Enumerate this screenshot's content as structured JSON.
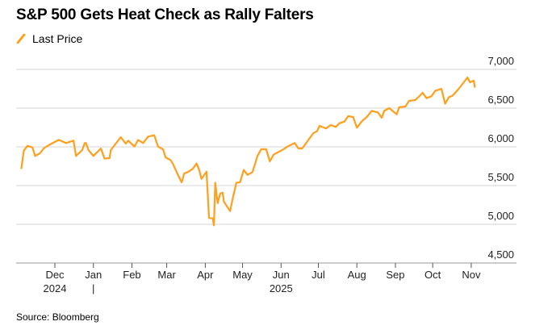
{
  "chart_data": {
    "type": "line",
    "title": "S&P 500 Gets Heat Check as Rally Falters",
    "legend": [
      {
        "name": "Last Price",
        "color": "#ff9f1c"
      }
    ],
    "legend_placement": "top-left",
    "source": "Source: Bloomberg",
    "x_unit": "days since 2024-11-01",
    "x_ticks": [
      {
        "label": "Dec",
        "day": 30
      },
      {
        "label": "Jan",
        "day": 61
      },
      {
        "label": "Feb",
        "day": 92
      },
      {
        "label": "Mar",
        "day": 120
      },
      {
        "label": "Apr",
        "day": 151
      },
      {
        "label": "May",
        "day": 181
      },
      {
        "label": "Jun",
        "day": 212
      },
      {
        "label": "Jul",
        "day": 242
      },
      {
        "label": "Aug",
        "day": 273
      },
      {
        "label": "Sep",
        "day": 304
      },
      {
        "label": "Oct",
        "day": 334
      },
      {
        "label": "Nov",
        "day": 365
      }
    ],
    "year_labels": [
      {
        "label": "2024",
        "day": 30
      },
      {
        "label": "|",
        "day": 61
      },
      {
        "label": "2025",
        "day": 212
      }
    ],
    "y_ticks": [
      4500,
      5000,
      5500,
      6000,
      6500,
      7000
    ],
    "y_tick_labels": [
      "4,500",
      "5,000",
      "5,500",
      "6,000",
      "6,500",
      "7,000"
    ],
    "ylim": [
      4500,
      7000
    ],
    "grid": true,
    "series": [
      {
        "name": "Last Price",
        "points": [
          [
            3,
            5715
          ],
          [
            5,
            5951
          ],
          [
            8,
            6013
          ],
          [
            12,
            5992
          ],
          [
            14,
            5882
          ],
          [
            18,
            5917
          ],
          [
            21,
            5979
          ],
          [
            25,
            6021
          ],
          [
            33,
            6090
          ],
          [
            39,
            6049
          ],
          [
            45,
            6080
          ],
          [
            47,
            5882
          ],
          [
            52,
            5958
          ],
          [
            54,
            6049
          ],
          [
            55,
            6049
          ],
          [
            57,
            5958
          ],
          [
            61,
            5882
          ],
          [
            67,
            5979
          ],
          [
            70,
            5847
          ],
          [
            74,
            5854
          ],
          [
            75,
            5958
          ],
          [
            78,
            6021
          ],
          [
            83,
            6125
          ],
          [
            87,
            6041
          ],
          [
            89,
            6080
          ],
          [
            94,
            6003
          ],
          [
            97,
            6090
          ],
          [
            101,
            6049
          ],
          [
            105,
            6132
          ],
          [
            110,
            6149
          ],
          [
            113,
            6003
          ],
          [
            117,
            5969
          ],
          [
            119,
            5865
          ],
          [
            123,
            5830
          ],
          [
            125,
            5779
          ],
          [
            129,
            5638
          ],
          [
            132,
            5541
          ],
          [
            134,
            5656
          ],
          [
            137,
            5674
          ],
          [
            141,
            5717
          ],
          [
            144,
            5784
          ],
          [
            146,
            5708
          ],
          [
            148,
            5586
          ],
          [
            151,
            5656
          ],
          [
            152,
            5680
          ],
          [
            154,
            5083
          ],
          [
            157,
            5076
          ],
          [
            158,
            4986
          ],
          [
            159,
            5536
          ],
          [
            161,
            5273
          ],
          [
            163,
            5396
          ],
          [
            165,
            5408
          ],
          [
            166,
            5292
          ],
          [
            171,
            5170
          ],
          [
            173,
            5326
          ],
          [
            176,
            5534
          ],
          [
            179,
            5545
          ],
          [
            182,
            5702
          ],
          [
            185,
            5638
          ],
          [
            189,
            5674
          ],
          [
            193,
            5882
          ],
          [
            196,
            5969
          ],
          [
            200,
            5969
          ],
          [
            203,
            5812
          ],
          [
            206,
            5899
          ],
          [
            210,
            5934
          ],
          [
            214,
            5969
          ],
          [
            217,
            6003
          ],
          [
            223,
            6049
          ],
          [
            226,
            5979
          ],
          [
            229,
            5979
          ],
          [
            234,
            6090
          ],
          [
            238,
            6177
          ],
          [
            241,
            6201
          ],
          [
            243,
            6271
          ],
          [
            248,
            6236
          ],
          [
            252,
            6281
          ],
          [
            256,
            6257
          ],
          [
            259,
            6305
          ],
          [
            263,
            6326
          ],
          [
            266,
            6396
          ],
          [
            270,
            6385
          ],
          [
            273,
            6247
          ],
          [
            277,
            6330
          ],
          [
            281,
            6385
          ],
          [
            285,
            6465
          ],
          [
            290,
            6444
          ],
          [
            293,
            6375
          ],
          [
            295,
            6465
          ],
          [
            299,
            6500
          ],
          [
            305,
            6420
          ],
          [
            307,
            6510
          ],
          [
            312,
            6521
          ],
          [
            315,
            6594
          ],
          [
            320,
            6604
          ],
          [
            326,
            6698
          ],
          [
            329,
            6628
          ],
          [
            333,
            6653
          ],
          [
            336,
            6722
          ],
          [
            341,
            6750
          ],
          [
            344,
            6556
          ],
          [
            347,
            6642
          ],
          [
            350,
            6660
          ],
          [
            355,
            6750
          ],
          [
            362,
            6896
          ],
          [
            364,
            6833
          ],
          [
            367,
            6854
          ],
          [
            368,
            6764
          ]
        ]
      }
    ]
  }
}
